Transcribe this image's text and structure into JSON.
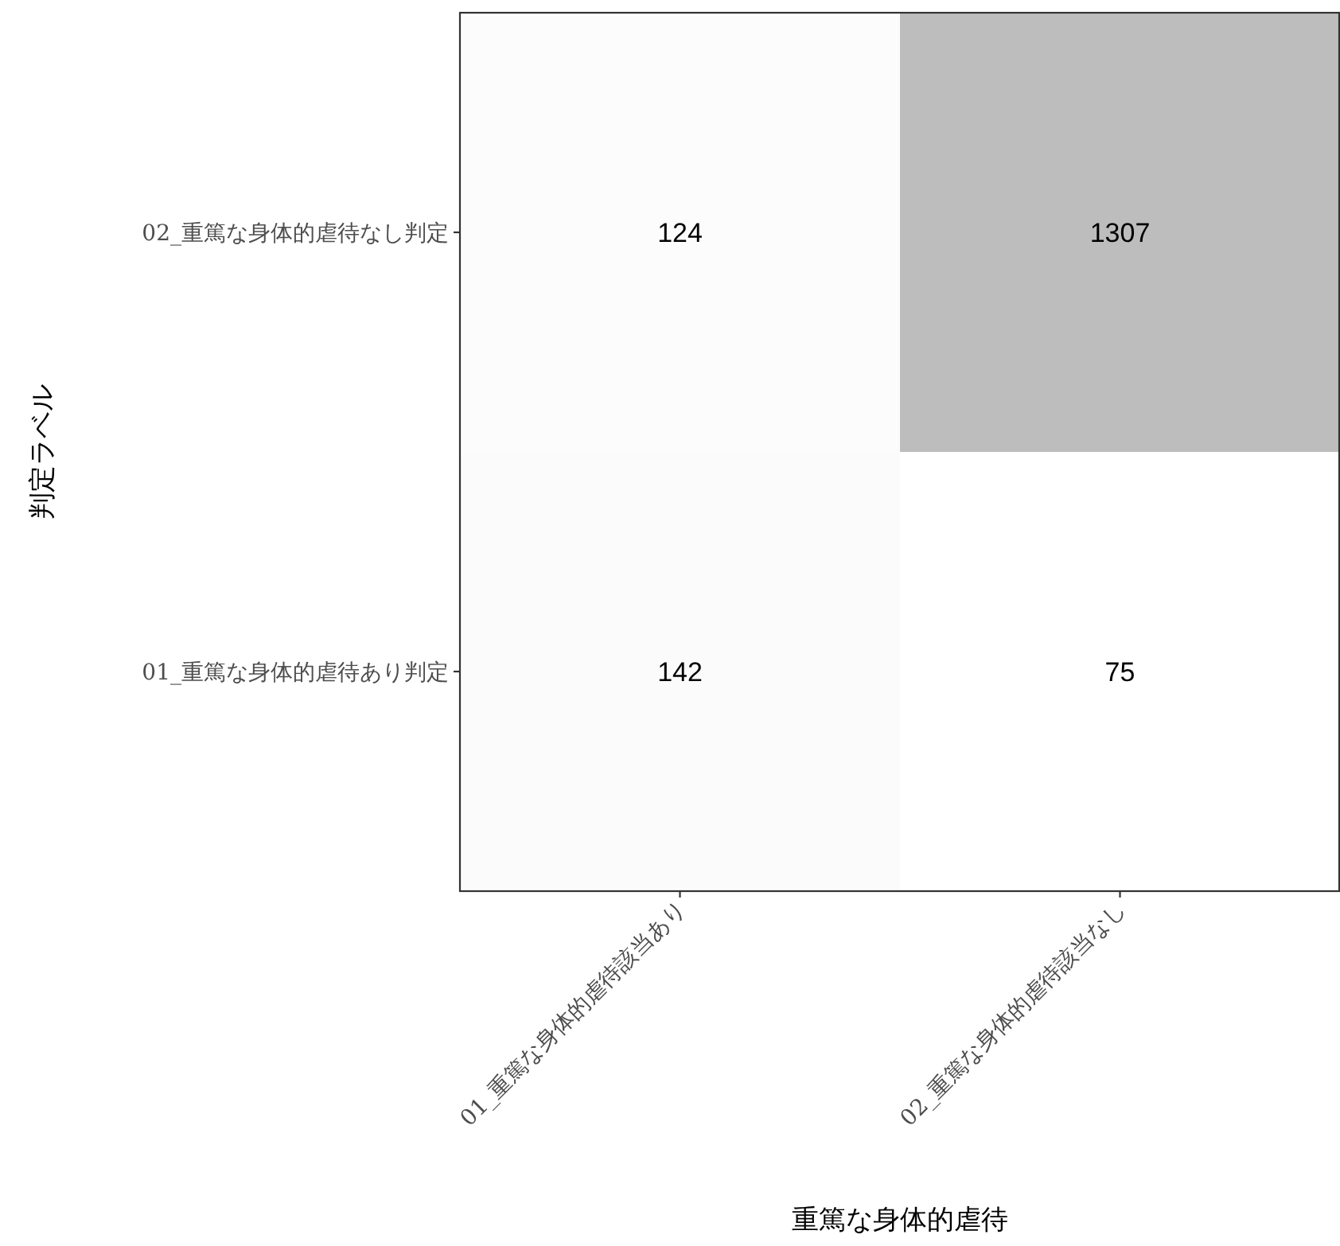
{
  "chart_data": {
    "type": "heatmap",
    "xlabel": "重篤な身体的虐待",
    "ylabel": "判定ラベル",
    "categories": [
      "01_重篤な身体的虐待該当あり",
      "02_重篤な身体的虐待該当なし"
    ],
    "y_categories": [
      "02_重篤な身体的虐待なし判定",
      "01_重篤な身体的虐待あり判定"
    ],
    "cells": [
      [
        124,
        1307
      ],
      [
        142,
        75
      ]
    ],
    "data_labels": true
  }
}
